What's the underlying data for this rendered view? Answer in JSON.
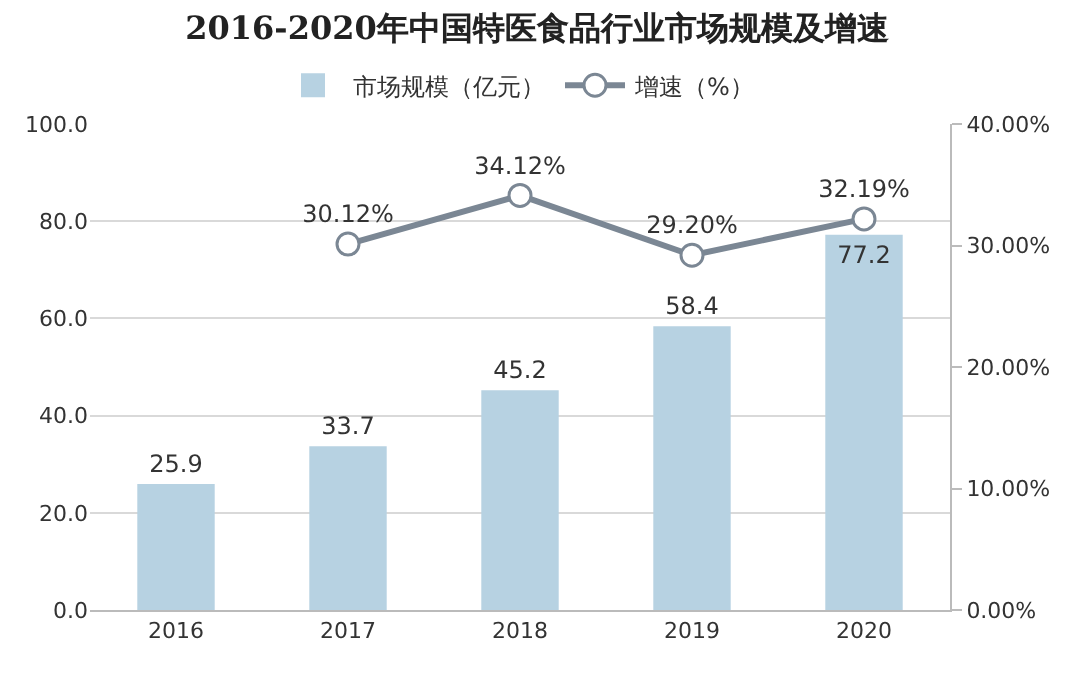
{
  "chart_data": {
    "type": "bar",
    "title": "2016-2020年中国特医食品行业市场规模及增速",
    "categories": [
      "2016",
      "2017",
      "2018",
      "2019",
      "2020"
    ],
    "series": [
      {
        "name": "市场规模（亿元）",
        "color": "#b7d2e2",
        "values": [
          25.9,
          33.7,
          45.2,
          58.4,
          77.2
        ],
        "value_labels": [
          "25.9",
          "33.7",
          "45.2",
          "58.4",
          "77.2"
        ]
      },
      {
        "name": "增速（%）",
        "type": "line",
        "axis": "y2",
        "color": "#7b8794",
        "values": [
          null,
          30.12,
          34.12,
          29.2,
          32.19
        ],
        "value_labels": [
          null,
          "30.12%",
          "34.12%",
          "29.20%",
          "32.19%"
        ]
      }
    ],
    "ylim": [
      0,
      100
    ],
    "yticks": [
      {
        "value": 0,
        "label": "0.0"
      },
      {
        "value": 20,
        "label": "20.0"
      },
      {
        "value": 40,
        "label": "40.0"
      },
      {
        "value": 60,
        "label": "60.0"
      },
      {
        "value": 80,
        "label": "80.0"
      },
      {
        "value": 100,
        "label": "100.0"
      }
    ],
    "y2lim": [
      0,
      40
    ],
    "y2ticks": [
      {
        "value": 0,
        "label": "0.00%"
      },
      {
        "value": 10,
        "label": "10.00%"
      },
      {
        "value": 20,
        "label": "20.00%"
      },
      {
        "value": 30,
        "label": "30.00%"
      },
      {
        "value": 40,
        "label": "40.00%"
      }
    ],
    "grid": "y",
    "legend": "top",
    "marker": "circle",
    "line_style": "solid"
  }
}
